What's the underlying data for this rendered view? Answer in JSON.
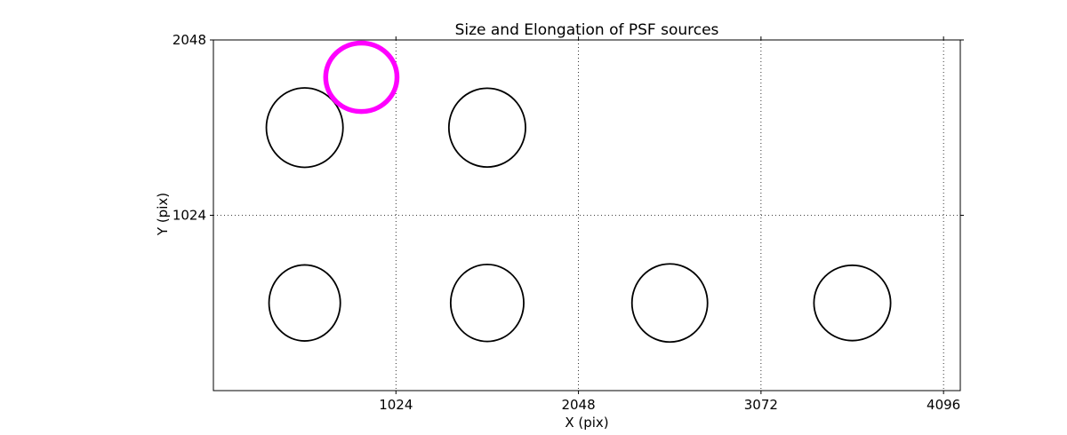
{
  "chart_data": {
    "type": "scatter",
    "title": "Size and Elongation of PSF sources",
    "xlabel": "X (pix)",
    "ylabel": "Y (pix)",
    "xlim": [
      0,
      4190
    ],
    "ylim": [
      0,
      2048
    ],
    "xticks": [
      1024,
      2048,
      3072,
      4096
    ],
    "yticks": [
      1024,
      2048
    ],
    "grid": true,
    "grid_style": "dotted",
    "frame_color": "#000000",
    "ellipse_color": "#000000",
    "highlight_color": "#ff00ff",
    "ellipses": [
      {
        "x": 512,
        "y": 1536,
        "rx": 215,
        "ry": 232,
        "color": "#000000",
        "stroke_width": 1.8,
        "highlighted": false
      },
      {
        "x": 1536,
        "y": 1536,
        "rx": 215,
        "ry": 230,
        "color": "#000000",
        "stroke_width": 1.8,
        "highlighted": false
      },
      {
        "x": 830,
        "y": 1830,
        "rx": 200,
        "ry": 200,
        "color": "#ff00ff",
        "stroke_width": 5.5,
        "highlighted": true
      },
      {
        "x": 512,
        "y": 512,
        "rx": 200,
        "ry": 222,
        "color": "#000000",
        "stroke_width": 1.8,
        "highlighted": false
      },
      {
        "x": 1536,
        "y": 512,
        "rx": 205,
        "ry": 225,
        "color": "#000000",
        "stroke_width": 1.8,
        "highlighted": false
      },
      {
        "x": 2560,
        "y": 512,
        "rx": 212,
        "ry": 228,
        "color": "#000000",
        "stroke_width": 1.8,
        "highlighted": false
      },
      {
        "x": 3584,
        "y": 512,
        "rx": 215,
        "ry": 220,
        "color": "#000000",
        "stroke_width": 1.8,
        "highlighted": false
      }
    ]
  }
}
